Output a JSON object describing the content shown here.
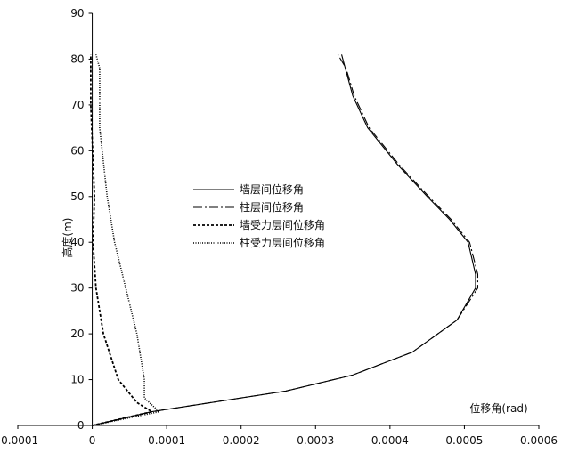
{
  "chart_data": {
    "type": "line",
    "title": "",
    "xlabel": "位移角(rad)",
    "ylabel": "高度(m)",
    "xlim": [
      -0.0001,
      0.0006
    ],
    "ylim": [
      0,
      90
    ],
    "xticks": [
      "-0.0001",
      "0",
      "0.0001",
      "0.0002",
      "0.0003",
      "0.0004",
      "0.0005",
      "0.0006"
    ],
    "yticks": [
      "0",
      "10",
      "20",
      "30",
      "40",
      "50",
      "60",
      "70",
      "80",
      "90"
    ],
    "grid": false,
    "legend_position": "center-left",
    "series": [
      {
        "name": "墙层间位移角",
        "style": "solid",
        "color": "#000000",
        "x": [
          0.0,
          8e-05,
          0.00016,
          0.00026,
          0.00035,
          0.00043,
          0.00049,
          0.000515,
          0.000515,
          0.000505,
          0.00048,
          0.00045,
          0.00041,
          0.00037,
          0.00035,
          0.00034,
          0.000335
        ],
        "y": [
          0,
          3,
          5,
          7.5,
          11,
          16,
          23,
          30,
          33,
          40,
          45,
          50,
          57,
          65,
          72,
          78,
          81
        ]
      },
      {
        "name": "柱层间位移角",
        "style": "dashdot",
        "color": "#000000",
        "x": [
          0.0,
          8e-05,
          0.00016,
          0.00026,
          0.00035,
          0.00043,
          0.00049,
          0.000518,
          0.000518,
          0.000507,
          0.000482,
          0.000452,
          0.000412,
          0.000372,
          0.000352,
          0.000341,
          0.00033
        ],
        "y": [
          0,
          3,
          5,
          7.5,
          11,
          16,
          23,
          30,
          33,
          40,
          45,
          50,
          57,
          65,
          72,
          78,
          81
        ]
      },
      {
        "name": "墙受力层间位移角",
        "style": "dash",
        "color": "#000000",
        "x": [
          0.0,
          8e-05,
          6e-05,
          3.5e-05,
          1.5e-05,
          5e-06,
          1e-06,
          3e-06,
          -2e-06,
          -2e-06
        ],
        "y": [
          0,
          3,
          5,
          10,
          20,
          30,
          40,
          50,
          70,
          81
        ]
      },
      {
        "name": "柱受力层间位移角",
        "style": "dot",
        "color": "#000000",
        "x": [
          0.0,
          9e-05,
          7e-05,
          7e-05,
          6e-05,
          4.5e-05,
          3e-05,
          2e-05,
          1e-05,
          1e-05,
          5e-06
        ],
        "y": [
          0,
          3,
          6,
          10,
          20,
          30,
          40,
          50,
          65,
          78,
          81
        ]
      }
    ]
  }
}
